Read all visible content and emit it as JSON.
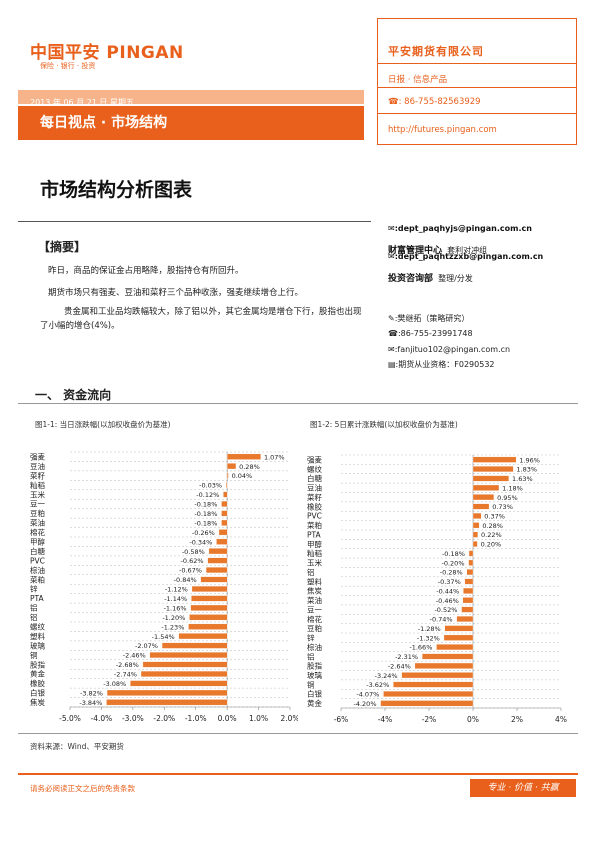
{
  "header": {
    "logo_text": "中国平安 PINGAN",
    "logo_sub": "保险 · 银行 · 投资",
    "date": "2013 年 06 月 21 日 星期五",
    "report_title": "每日视点 · 市场结构"
  },
  "company_box": {
    "company": "平安期货有限公司",
    "product": "日报 · 信息产品",
    "phone": "86-755-82563929",
    "url": "http://futures.pingan.com"
  },
  "main_title": "市场结构分析图表",
  "summary": {
    "heading": "【摘要】",
    "paragraphs": [
      "昨日，商品的保证金占用略降，股指持仓有所回升。",
      "期货市场只有强麦、豆油和菜籽三个品种收涨，强麦继续增仓上行。",
      "贵金属和工业品均跌幅较大，除了铝以外，其它金属均是增仓下行，股指也出现了小幅的增仓(4%)。"
    ]
  },
  "contacts": {
    "email1": "dept_paqhyjs@pingan.com.cn",
    "dept1": "财富管理中心",
    "dept1_note": "套利对冲组",
    "email2": "dept_paqhtzzxb@pingan.com.cn",
    "dept2": "投资咨询部",
    "dept2_note": "整理/分发",
    "analyst": "樊继拓（策略研究）",
    "analyst_phone": "86-755-23991748",
    "analyst_email": "fanjituo102@pingan.com.cn",
    "license": "期货从业资格：F0290532"
  },
  "section1": "一、 资金流向",
  "chart_data": [
    {
      "type": "bar",
      "orientation": "horizontal",
      "title": "图1-1: 当日涨跌幅(以加权收盘价为基准)",
      "categories": [
        "强麦",
        "豆油",
        "菜籽",
        "籼稻",
        "玉米",
        "豆一",
        "豆粕",
        "菜油",
        "棉花",
        "甲醇",
        "白糖",
        "PVC",
        "棕油",
        "菜粕",
        "锌",
        "PTA",
        "铝",
        "铝",
        "螺纹",
        "塑料",
        "玻璃",
        "铜",
        "股指",
        "黄金",
        "橡胶",
        "白银",
        "焦炭"
      ],
      "values": [
        1.07,
        0.28,
        0.04,
        -0.03,
        -0.12,
        -0.18,
        -0.18,
        -0.18,
        -0.26,
        -0.34,
        -0.58,
        -0.62,
        -0.67,
        -0.84,
        -1.12,
        -1.14,
        -1.16,
        -1.2,
        -1.23,
        -1.54,
        -2.07,
        -2.46,
        -2.68,
        -2.74,
        -3.08,
        -3.82,
        -3.84
      ],
      "value_labels": [
        "1.07%",
        "0.28%",
        "0.04%",
        "-0.03%",
        "-0.12%",
        "-0.18%",
        "-0.18%",
        "-0.18%",
        "-0.26%",
        "-0.34%",
        "-0.58%",
        "-0.62%",
        "-0.67%",
        "-0.84%",
        "-1.12%",
        "-1.14%",
        "-1.16%",
        "-1.20%",
        "-1.23%",
        "-1.54%",
        "-2.07%",
        "-2.46%",
        "-2.68%",
        "-2.74%",
        "-3.08%",
        "-3.82%",
        "-3.84%"
      ],
      "xlim": [
        -5,
        2
      ],
      "xticks": [
        -5,
        -4,
        -3,
        -2,
        -1,
        0,
        1,
        2
      ],
      "xtick_labels": [
        "-5.0%",
        "-4.0%",
        "-3.0%",
        "-2.0%",
        "-1.0%",
        "0.0%",
        "1.0%",
        "2.0%"
      ],
      "bar_color": "#e8782c",
      "grid": true
    },
    {
      "type": "bar",
      "orientation": "horizontal",
      "title": "图1-2: 5日累计涨跌幅(以加权收盘价为基准)",
      "categories": [
        "强麦",
        "螺纹",
        "白糖",
        "豆油",
        "菜籽",
        "橡胶",
        "PVC",
        "菜粕",
        "PTA",
        "甲醇",
        "籼稻",
        "玉米",
        "铝",
        "塑料",
        "焦炭",
        "菜油",
        "豆一",
        "棉花",
        "豆粕",
        "锌",
        "棕油",
        "铝",
        "股指",
        "玻璃",
        "铜",
        "白银",
        "黄金"
      ],
      "values": [
        1.96,
        1.83,
        1.63,
        1.18,
        0.95,
        0.73,
        0.37,
        0.28,
        0.22,
        0.2,
        -0.18,
        -0.2,
        -0.28,
        -0.37,
        -0.44,
        -0.46,
        -0.52,
        -0.74,
        -1.28,
        -1.32,
        -1.66,
        -2.31,
        -2.64,
        -3.24,
        -3.62,
        -4.07,
        -4.2
      ],
      "value_labels": [
        "1.96%",
        "1.83%",
        "1.63%",
        "1.18%",
        "0.95%",
        "0.73%",
        "0.37%",
        "0.28%",
        "0.22%",
        "0.20%",
        "-0.18%",
        "-0.20%",
        "-0.28%",
        "-0.37%",
        "-0.44%",
        "-0.46%",
        "-0.52%",
        "-0.74%",
        "-1.28%",
        "-1.32%",
        "-1.66%",
        "-2.31%",
        "-2.64%",
        "-3.24%",
        "-3.62%",
        "-4.07%",
        "-4.20%"
      ],
      "xlim": [
        -6,
        4
      ],
      "xticks": [
        -6,
        -4,
        -2,
        0,
        2,
        4
      ],
      "xtick_labels": [
        "-6%",
        "-4%",
        "-2%",
        "0%",
        "2%",
        "4%"
      ],
      "bar_color": "#e8782c",
      "grid": true
    }
  ],
  "source": "资料来源：Wind、平安期货",
  "footer": {
    "disclaimer": "请务必阅读正文之后的免责条款",
    "slogan": "专业 · 价值 · 共赢"
  }
}
